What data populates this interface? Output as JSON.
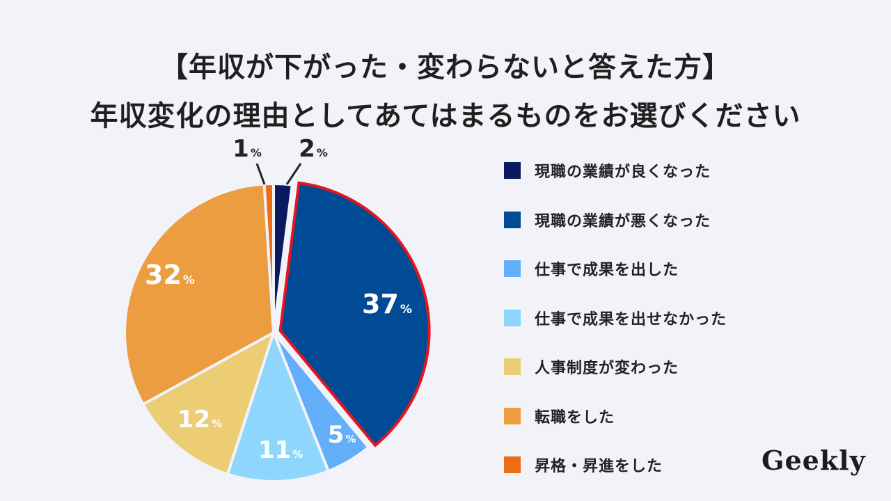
{
  "title": {
    "line1": "【年収が下がった・変わらないと答えた方】",
    "line2": "年収変化の理由としてあてはまるものをお選びください"
  },
  "chart_data": {
    "type": "pie",
    "unit": "%",
    "highlighted": "現職の業績が悪くなった",
    "highlight_color": "#e8141c",
    "slices": [
      {
        "name": "現職の業績が良くなった",
        "value": 2,
        "color": "#0b1a5e"
      },
      {
        "name": "現職の業績が悪くなった",
        "value": 37,
        "color": "#004a96"
      },
      {
        "name": "仕事で成果を出した",
        "value": 5,
        "color": "#63aef8"
      },
      {
        "name": "仕事で成果を出せなかった",
        "value": 11,
        "color": "#8ed6fb"
      },
      {
        "name": "人事制度が変わった",
        "value": 12,
        "color": "#eccd73"
      },
      {
        "name": "転職をした",
        "value": 32,
        "color": "#eb9d40"
      },
      {
        "name": "昇格・昇進をした",
        "value": 1,
        "color": "#ec6d16"
      }
    ],
    "legend_position": "right"
  },
  "logo": {
    "text": "Geekly"
  }
}
